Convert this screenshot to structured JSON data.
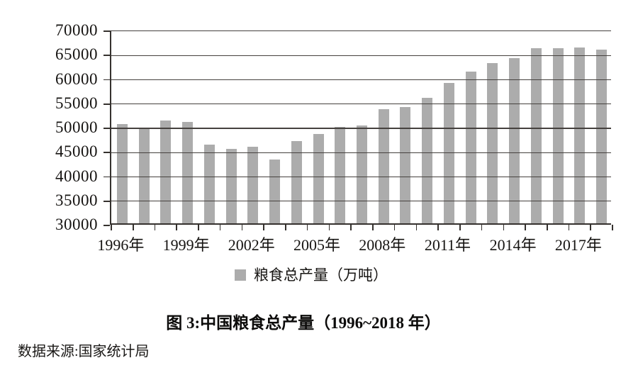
{
  "chart_data": {
    "type": "bar",
    "categories": [
      "1996",
      "1997",
      "1998",
      "1999",
      "2000",
      "2001",
      "2002",
      "2003",
      "2004",
      "2005",
      "2006",
      "2007",
      "2008",
      "2009",
      "2010",
      "2011",
      "2012",
      "2013",
      "2014",
      "2015",
      "2016",
      "2017",
      "2018"
    ],
    "values": [
      50454,
      49417,
      51230,
      50839,
      46218,
      45264,
      45706,
      43070,
      46947,
      48402,
      49804,
      50160,
      53434,
      53941,
      55911,
      58849,
      61223,
      63048,
      63965,
      66060,
      66044,
      66161,
      65789
    ],
    "series_name": "粮食总产量（万吨）",
    "ylim": [
      30000,
      70000
    ],
    "y_tick_step": 5000,
    "y_tick_labels": [
      "70000",
      "65000",
      "60000",
      "55000",
      "50000",
      "45000",
      "40000",
      "35000",
      "30000"
    ],
    "x_tick_labels": [
      {
        "index": 0,
        "label": "1996年"
      },
      {
        "index": 3,
        "label": "1999年"
      },
      {
        "index": 6,
        "label": "2002年"
      },
      {
        "index": 9,
        "label": "2005年"
      },
      {
        "index": 12,
        "label": "2008年"
      },
      {
        "index": 15,
        "label": "2011年"
      },
      {
        "index": 18,
        "label": "2014年"
      },
      {
        "index": 21,
        "label": "2017年"
      }
    ],
    "grid": true,
    "legend_position": "bottom",
    "bar_color": "#acacac",
    "grid_color": "#45413e",
    "axis_color": "#35312e"
  },
  "legend": {
    "label": "粮食总产量（万吨）",
    "swatch_color": "#acacac",
    "swatch_icon": "legend-square"
  },
  "caption": {
    "title": "图 3:中国粮食总产量（1996~2018 年）"
  },
  "source": {
    "text": "数据来源:国家统计局"
  }
}
